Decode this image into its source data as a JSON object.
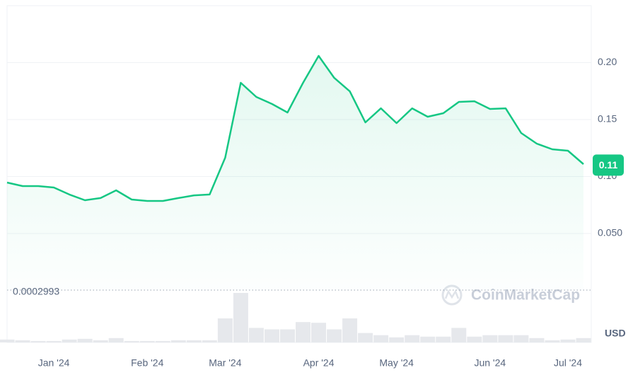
{
  "chart_data": {
    "type": "line",
    "categories": [
      null,
      null,
      null,
      "Jan '24",
      null,
      null,
      null,
      null,
      null,
      "Feb '24",
      null,
      null,
      null,
      null,
      "Mar '24",
      null,
      null,
      null,
      null,
      null,
      "Apr '24",
      null,
      null,
      null,
      null,
      "May '24",
      null,
      null,
      null,
      null,
      null,
      "Jun '24",
      null,
      null,
      null,
      null,
      "Jul '24",
      null
    ],
    "series": [
      {
        "color": "#16c784",
        "values": [
          0.0947,
          0.0916,
          0.0916,
          0.0904,
          0.0842,
          0.0792,
          0.0811,
          0.0879,
          0.0798,
          0.0786,
          0.0786,
          0.0811,
          0.0835,
          0.0842,
          0.1165,
          0.1823,
          0.1699,
          0.1637,
          0.1562,
          0.1823,
          0.2059,
          0.1866,
          0.1748,
          0.1475,
          0.1599,
          0.1469,
          0.1599,
          0.1525,
          0.1556,
          0.1655,
          0.1661,
          0.1593,
          0.1599,
          0.1382,
          0.1289,
          0.1239,
          0.1227,
          0.1109
        ]
      }
    ],
    "volume": [
      4,
      3,
      2,
      2,
      4,
      5,
      3,
      6,
      2,
      2,
      2,
      3,
      3,
      3,
      33,
      68,
      20,
      18,
      18,
      28,
      27,
      18,
      33,
      13,
      10,
      7,
      10,
      8,
      8,
      20,
      8,
      10,
      10,
      10,
      6,
      3,
      4,
      6
    ],
    "volume_color": "#e6e8ec",
    "ylim": [
      0,
      0.25
    ],
    "yticks": [
      {
        "value": 0.05,
        "label": "0.050"
      },
      {
        "value": 0.1,
        "label": "0.10"
      },
      0.15,
      {
        "value": 0.2,
        "label": "0.20"
      }
    ],
    "grid": true,
    "baseline": 0.0002993,
    "current_price": 0.11,
    "axis_unit": "USD",
    "watermark": "CoinMarketCap"
  }
}
